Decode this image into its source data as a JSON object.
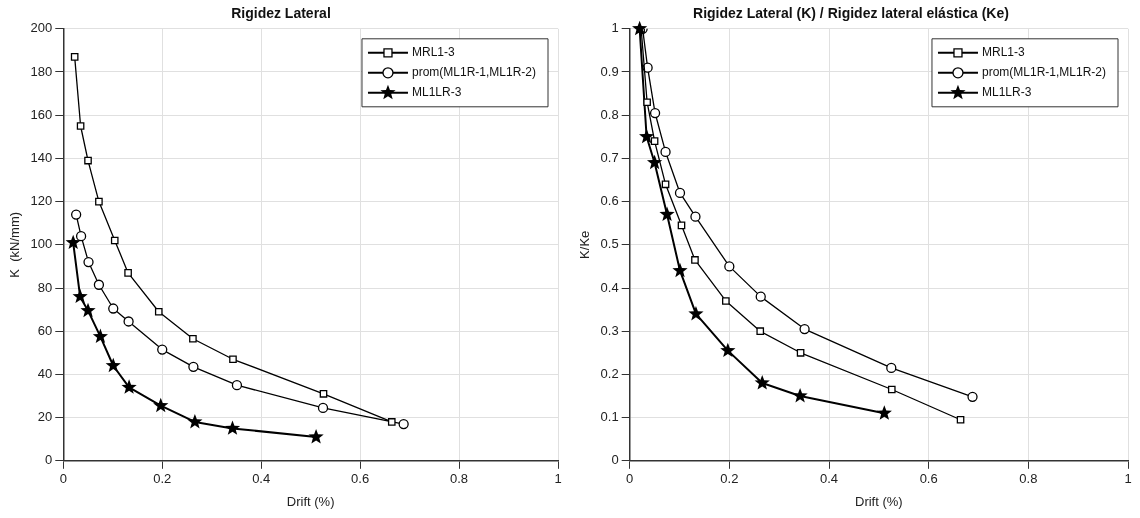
{
  "chart_data": [
    {
      "type": "line",
      "title": "Rigidez Lateral",
      "xlabel": "Drift (%)",
      "ylabel": "K  (kN/mm)",
      "xlim": [
        0,
        1
      ],
      "xticks": [
        0,
        0.2,
        0.4,
        0.6,
        0.8,
        1
      ],
      "ylim": [
        0,
        200
      ],
      "yticks": [
        0,
        20,
        40,
        60,
        80,
        100,
        120,
        140,
        160,
        180,
        200
      ],
      "grid": true,
      "legend": "top right",
      "series": [
        {
          "name": "MRL1-3",
          "color": "#000000",
          "marker": "square",
          "x": [
            0.023,
            0.035,
            0.05,
            0.072,
            0.104,
            0.131,
            0.193,
            0.262,
            0.343,
            0.526,
            0.664
          ],
          "values": [
            187,
            155,
            139,
            120,
            102,
            87,
            69,
            56.5,
            47,
            31,
            18
          ]
        },
        {
          "name": "prom(ML1R-1,ML1R-2)",
          "color": "#000000",
          "marker": "circle",
          "x": [
            0.026,
            0.036,
            0.051,
            0.072,
            0.101,
            0.132,
            0.2,
            0.263,
            0.351,
            0.525,
            0.688
          ],
          "values": [
            114,
            104,
            92,
            81.5,
            70.5,
            64.5,
            51.5,
            43.5,
            35,
            24.5,
            17
          ]
        },
        {
          "name": "ML1LR-3",
          "color": "#000000",
          "marker": "star",
          "x": [
            0.02,
            0.034,
            0.05,
            0.075,
            0.101,
            0.133,
            0.197,
            0.266,
            0.342,
            0.511
          ],
          "values": [
            101,
            76,
            69.5,
            57.5,
            44,
            34,
            25.5,
            18,
            15,
            11
          ]
        }
      ]
    },
    {
      "type": "line",
      "title": "Rigidez Lateral (K) / Rigidez lateral elástica (Ke)",
      "xlabel": "Drift (%)",
      "ylabel": "K/Ke",
      "xlim": [
        0,
        1
      ],
      "xticks": [
        0,
        0.2,
        0.4,
        0.6,
        0.8,
        1
      ],
      "ylim": [
        0,
        1
      ],
      "yticks": [
        0,
        0.1,
        0.2,
        0.3,
        0.4,
        0.5,
        0.6,
        0.7,
        0.8,
        0.9,
        1
      ],
      "grid": true,
      "legend": "top right",
      "series": [
        {
          "name": "MRL1-3",
          "color": "#000000",
          "marker": "square",
          "x": [
            0.023,
            0.035,
            0.05,
            0.072,
            0.104,
            0.131,
            0.193,
            0.262,
            0.343,
            0.526,
            0.664
          ],
          "values": [
            1,
            0.83,
            0.74,
            0.64,
            0.545,
            0.465,
            0.37,
            0.3,
            0.25,
            0.165,
            0.095
          ]
        },
        {
          "name": "prom(ML1R-1,ML1R-2)",
          "color": "#000000",
          "marker": "circle",
          "x": [
            0.026,
            0.036,
            0.051,
            0.072,
            0.101,
            0.132,
            0.2,
            0.263,
            0.351,
            0.525,
            0.688
          ],
          "values": [
            1,
            0.91,
            0.805,
            0.715,
            0.62,
            0.565,
            0.45,
            0.38,
            0.305,
            0.215,
            0.148
          ]
        },
        {
          "name": "ML1LR-3",
          "color": "#000000",
          "marker": "star",
          "x": [
            0.02,
            0.034,
            0.05,
            0.075,
            0.101,
            0.133,
            0.197,
            0.266,
            0.342,
            0.511
          ],
          "values": [
            1,
            0.75,
            0.69,
            0.57,
            0.44,
            0.34,
            0.255,
            0.18,
            0.15,
            0.11
          ]
        }
      ]
    }
  ]
}
